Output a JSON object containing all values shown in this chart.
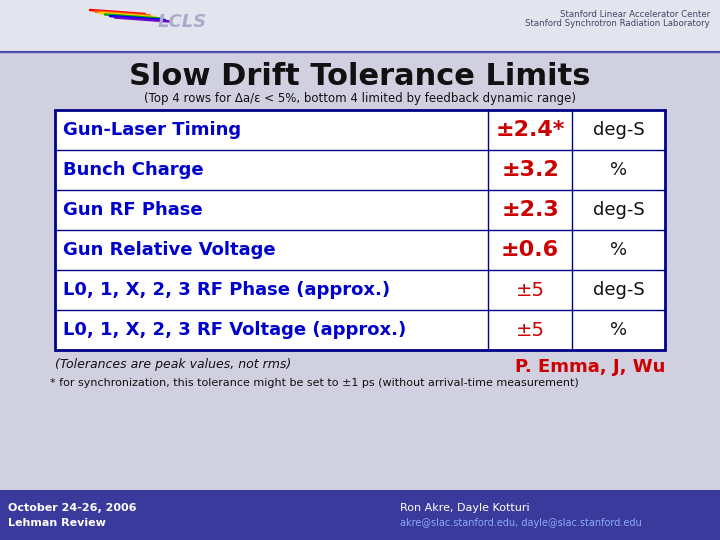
{
  "title": "Slow Drift Tolerance Limits",
  "subtitle": "(Top 4 rows for Δa/ε < 5%, bottom 4 limited by feedback dynamic range)",
  "table_rows": [
    [
      "Gun-Laser Timing",
      "±2.4*",
      "deg-S"
    ],
    [
      "Bunch Charge",
      "±3.2",
      "%"
    ],
    [
      "Gun RF Phase",
      "±2.3",
      "deg-S"
    ],
    [
      "Gun Relative Voltage",
      "±0.6",
      "%"
    ],
    [
      "L0, 1, X, 2, 3 RF Phase (approx.)",
      "±5",
      "deg-S"
    ],
    [
      "L0, 1, X, 2, 3 RF Voltage (approx.)",
      "±5",
      "%"
    ]
  ],
  "col1_color": "#0000cc",
  "col2_color": "#cc0000",
  "col3_color": "#111111",
  "table_border_color": "#000088",
  "note_left": "(Tolerances are peak values, not rms)",
  "note_right": "P. Emma, J, Wu",
  "note_right_color": "#cc0000",
  "footnote": "* for synchronization, this tolerance might be set to ±1 ps (without arrival-time measurement)",
  "footer_bg": "#3a3a9c",
  "footer_left1": "October 24-26, 2006",
  "footer_left2": "Lehman Review",
  "footer_right1": "Ron Akre, Dayle Kotturi",
  "footer_right2": "akre@slac.stanford.edu, dayle@slac.stanford.edu",
  "bg_color": "#d0d0e0",
  "white": "#ffffff",
  "header_line_color": "#4444aa",
  "stanford_text_color": "#444466"
}
